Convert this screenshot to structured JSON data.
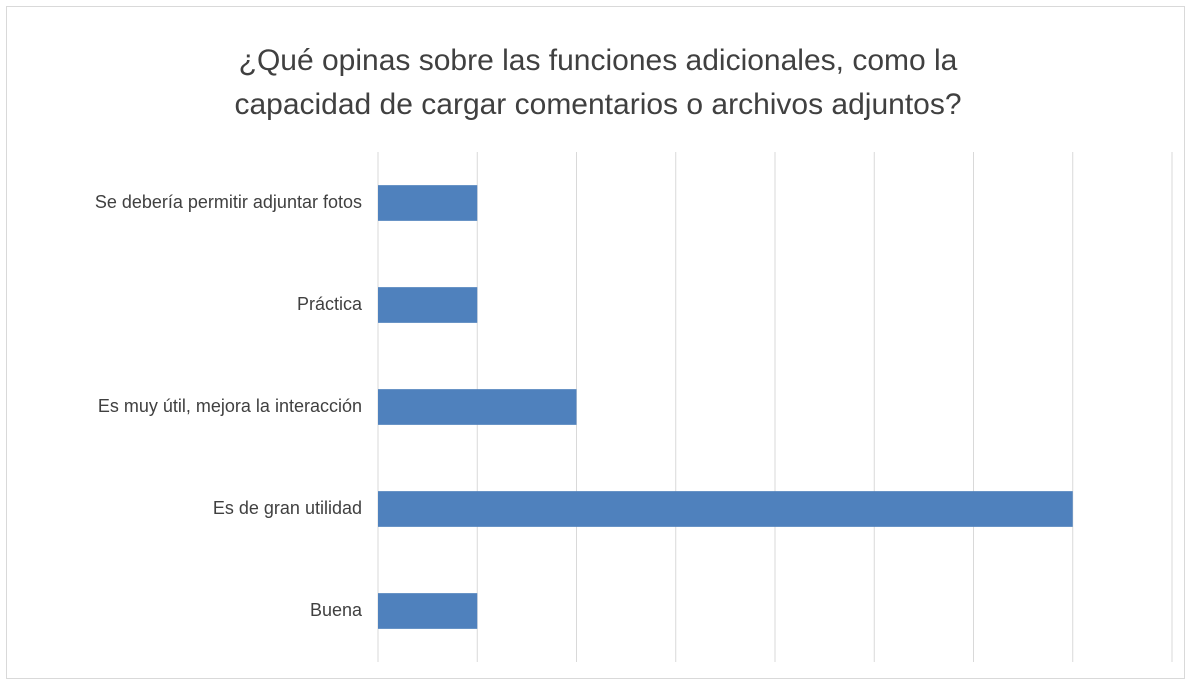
{
  "chart_data": {
    "type": "bar",
    "orientation": "horizontal",
    "title": [
      "¿Qué opinas sobre las funciones adicionales, como la",
      "capacidad de cargar comentarios o archivos adjuntos?"
    ],
    "categories": [
      "Se debería permitir adjuntar fotos",
      "Práctica",
      "Es muy útil, mejora la interacción",
      "Es de gran utilidad",
      "Buena"
    ],
    "values": [
      1,
      1,
      2,
      7,
      1
    ],
    "color": "#4f81bd",
    "xlim": [
      0,
      8
    ],
    "xticks": [
      0,
      1,
      2,
      3,
      4,
      5,
      6,
      7,
      8
    ],
    "grid": true
  }
}
